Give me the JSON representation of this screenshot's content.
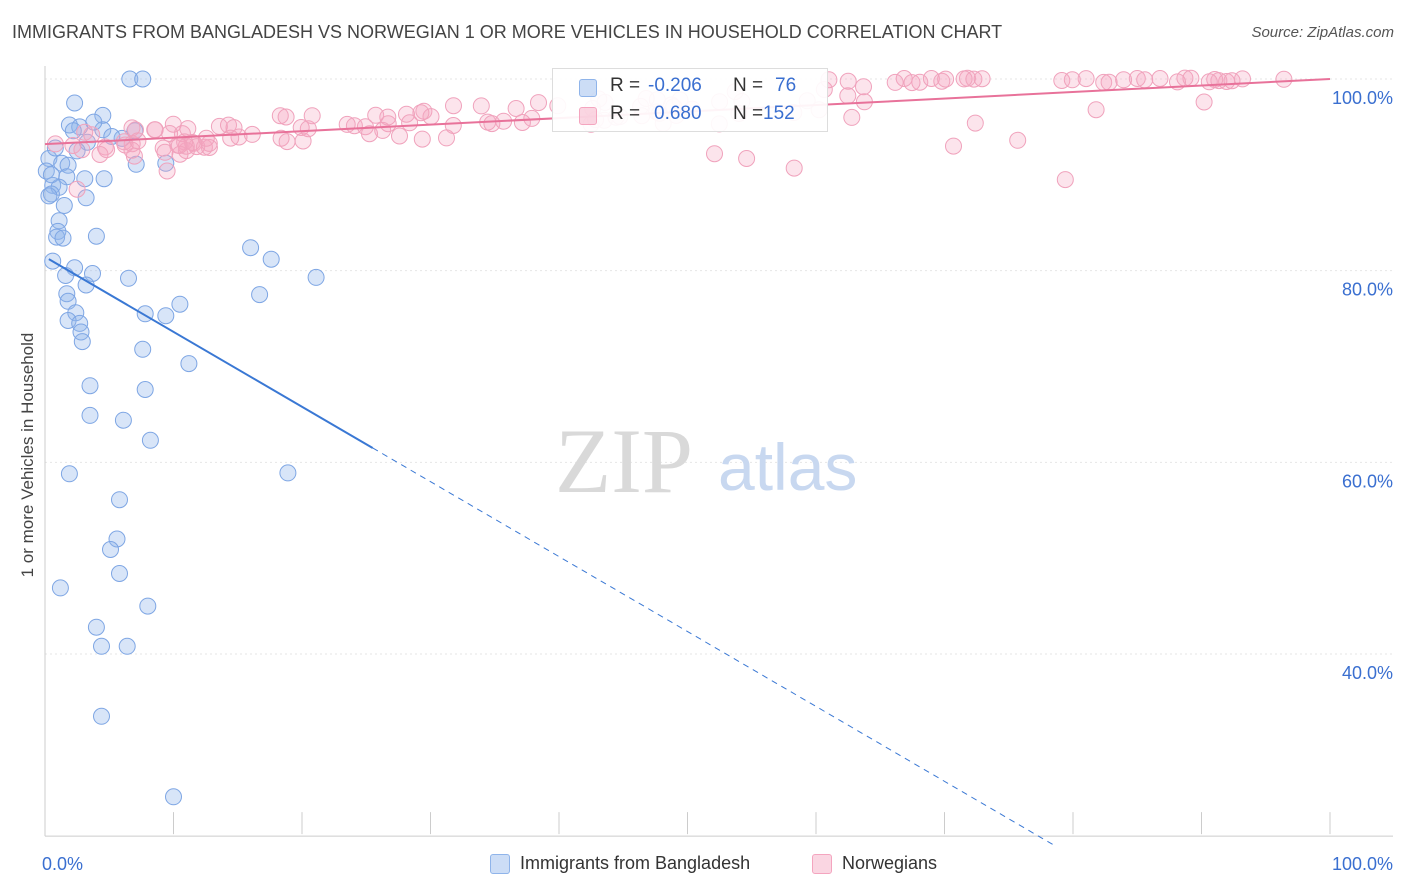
{
  "chart_data": {
    "type": "scatter",
    "title": "IMMIGRANTS FROM BANGLADESH VS NORWEGIAN 1 OR MORE VEHICLES IN HOUSEHOLD CORRELATION CHART",
    "source": "Source: ZipAtlas.com",
    "ylabel": "1 or more Vehicles in Household",
    "xlim": [
      0,
      100
    ],
    "ylim": [
      21,
      102
    ],
    "x_ticks": [
      {
        "value": 0,
        "label": "0.0%"
      },
      {
        "value": 100,
        "label": "100.0%"
      }
    ],
    "y_ticks": [
      {
        "value": 100,
        "label": "100.0%"
      },
      {
        "value": 80,
        "label": "80.0%"
      },
      {
        "value": 60,
        "label": "60.0%"
      },
      {
        "value": 40,
        "label": "40.0%"
      }
    ],
    "watermark": {
      "zip": "ZIP",
      "atlas": "atlas"
    },
    "legend": {
      "r_label": "R =",
      "n_label": "N =",
      "rows": [
        {
          "r": "-0.206",
          "n": "76"
        },
        {
          "r": "0.680",
          "n": "152"
        }
      ]
    },
    "series": [
      {
        "name": "Immigrants from Bangladesh",
        "color": "#8fb4ea",
        "line_color": "#3a78d4",
        "trend": {
          "x0": 0.3,
          "y0": 81.2,
          "x1": 25.5,
          "y1": 61.5,
          "x_end": 78.5
        }
      },
      {
        "name": "Norwegians",
        "color": "#f4a5bf",
        "line_color": "#e8729a",
        "trend": {
          "x0": 0,
          "y0": 93.2,
          "x1": 100,
          "y1": 100.0
        }
      }
    ]
  }
}
